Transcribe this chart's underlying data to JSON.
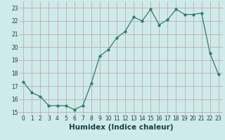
{
  "x": [
    0,
    1,
    2,
    3,
    4,
    5,
    6,
    7,
    8,
    9,
    10,
    11,
    12,
    13,
    14,
    15,
    16,
    17,
    18,
    19,
    20,
    21,
    22,
    23
  ],
  "y": [
    17.3,
    16.5,
    16.2,
    15.5,
    15.5,
    15.5,
    15.2,
    15.5,
    17.2,
    19.3,
    19.8,
    20.7,
    21.2,
    22.3,
    22.0,
    22.9,
    21.7,
    22.1,
    22.9,
    22.5,
    22.5,
    22.6,
    19.5,
    17.9
  ],
  "xlabel": "Humidex (Indice chaleur)",
  "xlim": [
    -0.5,
    23.5
  ],
  "ylim": [
    14.8,
    23.5
  ],
  "yticks": [
    15,
    16,
    17,
    18,
    19,
    20,
    21,
    22,
    23
  ],
  "xticks": [
    0,
    1,
    2,
    3,
    4,
    5,
    6,
    7,
    8,
    9,
    10,
    11,
    12,
    13,
    14,
    15,
    16,
    17,
    18,
    19,
    20,
    21,
    22,
    23
  ],
  "line_color": "#2d7c6e",
  "marker_size": 2.5,
  "bg_color": "#ceeaea",
  "grid_color": "#c0a0a0",
  "fig_bg": "#ceeaea",
  "tick_fontsize": 5.5,
  "xlabel_fontsize": 7.5
}
